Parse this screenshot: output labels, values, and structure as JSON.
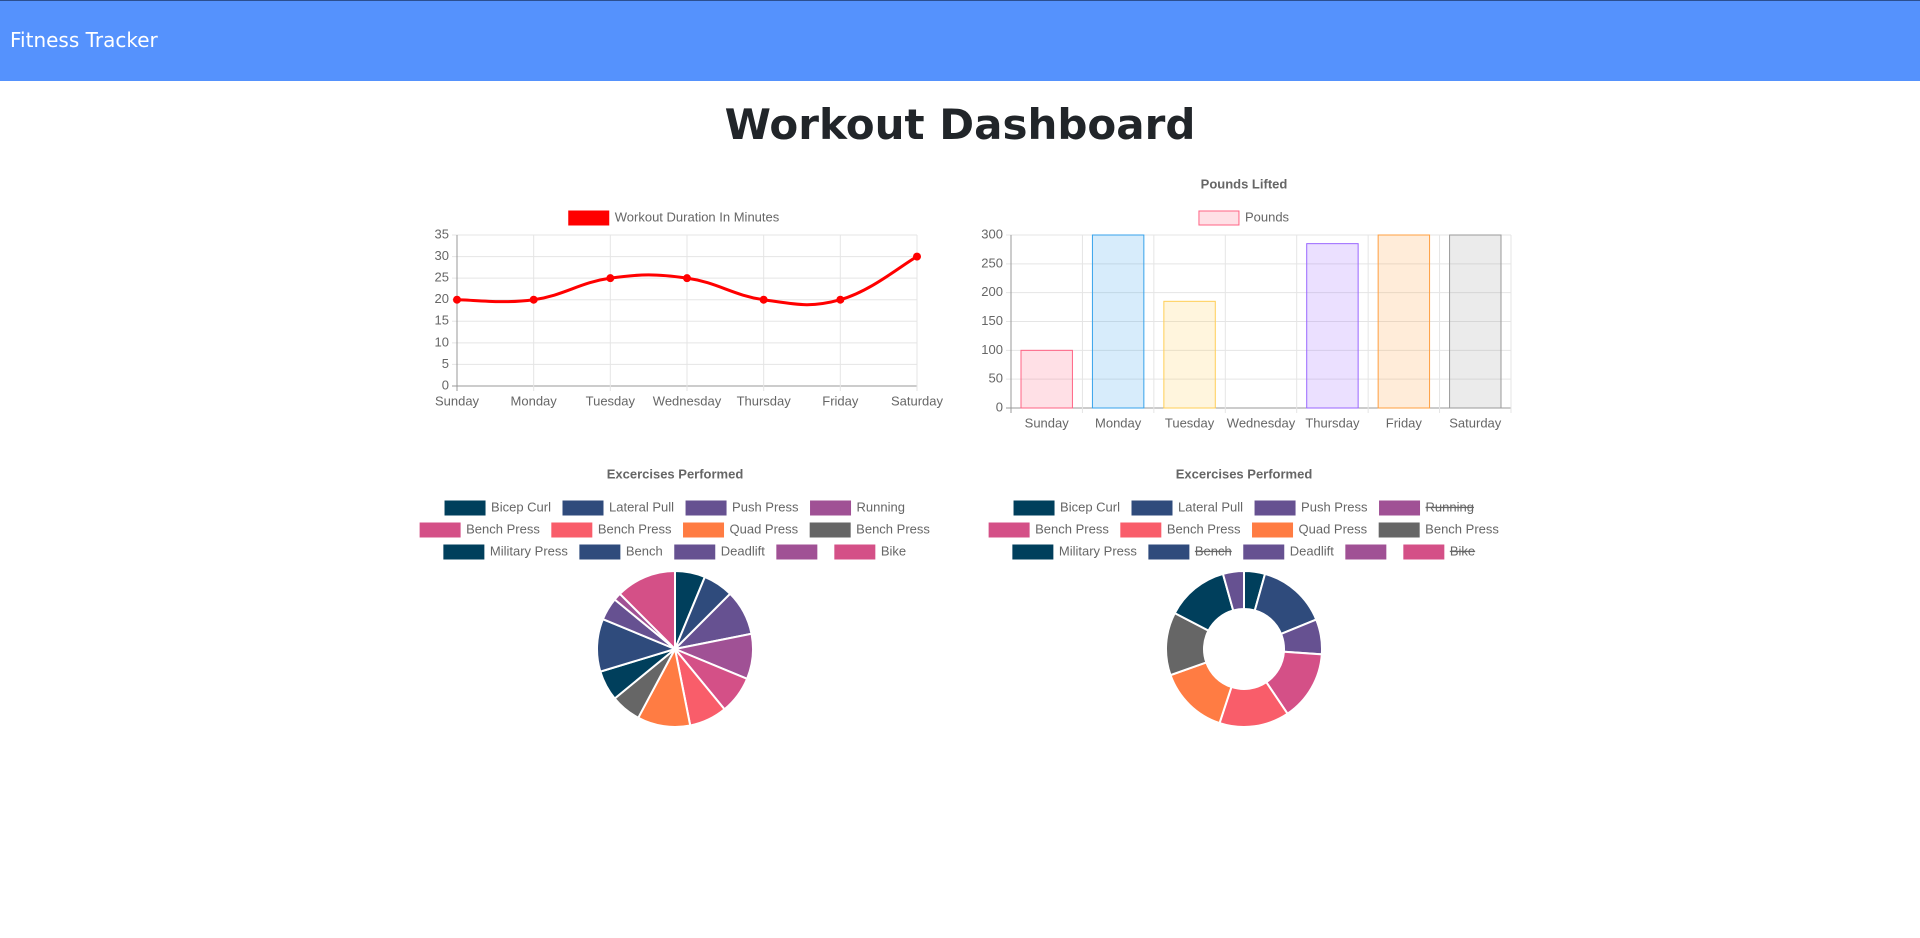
{
  "header": {
    "brand": "Fitness Tracker",
    "title": "Workout Dashboard"
  },
  "chart_data": [
    {
      "type": "line",
      "series": [
        {
          "name": "Workout Duration In Minutes",
          "color": "#ff0000",
          "values": [
            20,
            20,
            25,
            25,
            20,
            20,
            30
          ]
        }
      ],
      "categories": [
        "Sunday",
        "Monday",
        "Tuesday",
        "Wednesday",
        "Thursday",
        "Friday",
        "Saturday"
      ],
      "ylim": [
        0,
        35
      ],
      "yticks": [
        0,
        5,
        10,
        15,
        20,
        25,
        30,
        35
      ],
      "grid": true
    },
    {
      "type": "bar",
      "title": "Pounds Lifted",
      "series": [
        {
          "name": "Pounds",
          "color": "#ff6384",
          "values": [
            100,
            300,
            185,
            0,
            285,
            300,
            300
          ],
          "colors": [
            "#ff6384",
            "#36a2eb",
            "#ffce56",
            "#4bc0c0",
            "#9966ff",
            "#ff9f40",
            "#9a9a9a"
          ]
        }
      ],
      "categories": [
        "Sunday",
        "Monday",
        "Tuesday",
        "Wednesday",
        "Thursday",
        "Friday",
        "Saturday"
      ],
      "ylim": [
        0,
        300
      ],
      "yticks": [
        0,
        50,
        100,
        150,
        200,
        250,
        300
      ],
      "grid": true
    },
    {
      "type": "pie",
      "title": "Excercises Performed",
      "categories": [
        "Bicep Curl",
        "Lateral Pull",
        "Push Press",
        "Running",
        "Bench Press",
        "Bench Press",
        "Quad Press",
        "Bench Press",
        "Military Press",
        "Bench",
        "Deadlift",
        null,
        "Bike"
      ],
      "values": [
        20,
        20,
        30,
        30,
        25,
        25,
        35,
        20,
        20,
        35,
        15,
        5,
        40
      ],
      "colors": [
        "#003f5c",
        "#2f4b7c",
        "#665191",
        "#a05195",
        "#d45087",
        "#f95d6a",
        "#ff7c43",
        "#666666",
        "#003f5c",
        "#2f4b7c",
        "#665191",
        "#a05195",
        "#d45087"
      ]
    },
    {
      "type": "doughnut",
      "title": "Excercises Performed",
      "categories": [
        "Bicep Curl",
        "Lateral Pull",
        "Push Press",
        "Running",
        "Bench Press",
        "Bench Press",
        "Quad Press",
        "Bench Press",
        "Military Press",
        "Bench",
        "Deadlift",
        null,
        "Bike"
      ],
      "values": [
        15,
        50,
        25,
        null,
        50,
        50,
        50,
        45,
        45,
        null,
        15,
        0,
        null
      ],
      "hidden": [
        3,
        9,
        12
      ],
      "colors": [
        "#003f5c",
        "#2f4b7c",
        "#665191",
        "#a05195",
        "#d45087",
        "#f95d6a",
        "#ff7c43",
        "#666666",
        "#003f5c",
        "#2f4b7c",
        "#665191",
        "#a05195",
        "#d45087"
      ]
    }
  ]
}
